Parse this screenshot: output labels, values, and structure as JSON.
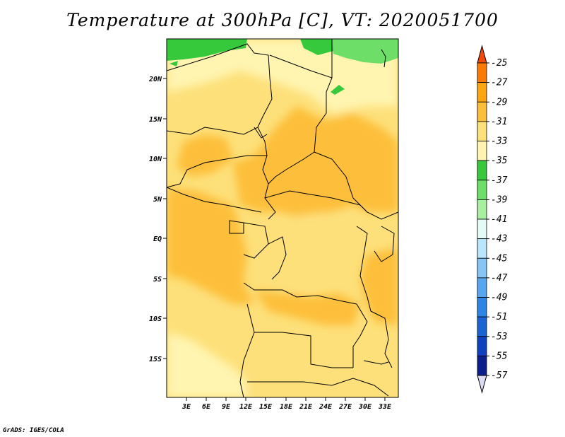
{
  "title": "Temperature at 300hPa [C], VT: 2020051700",
  "credit": "GrADS: IGES/COLA",
  "map": {
    "lon_ticks": [
      "3E",
      "6E",
      "9E",
      "12E",
      "15E",
      "18E",
      "21E",
      "24E",
      "27E",
      "30E",
      "33E"
    ],
    "lat_ticks": [
      "20N",
      "15N",
      "10N",
      "5N",
      "EQ",
      "5S",
      "10S",
      "15S"
    ]
  },
  "colorbar": {
    "labels": [
      "-25",
      "-27",
      "-29",
      "-31",
      "-33",
      "-35",
      "-37",
      "-39",
      "-41",
      "-43",
      "-45",
      "-47",
      "-49",
      "-51",
      "-53",
      "-55",
      "-57"
    ],
    "colors": [
      "#f04a0b",
      "#fb7a06",
      "#fda60f",
      "#fdbf3a",
      "#fde07a",
      "#fff4b0",
      "#36c93c",
      "#6ddf68",
      "#a6f0a0",
      "#e2fbf6",
      "#b9e6fb",
      "#86c6f6",
      "#57a6f1",
      "#2d86e6",
      "#1a63d5",
      "#0f40bf",
      "#0b1e8c",
      "#dcdcf5"
    ]
  }
}
